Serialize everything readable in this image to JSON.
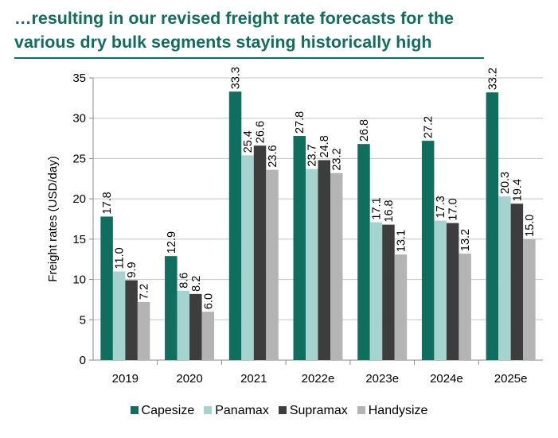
{
  "page": {
    "title_line1": "…resulting in our revised freight rate forecasts for the",
    "title_line2": "various dry bulk segments staying historically high"
  },
  "chart_data": {
    "type": "bar",
    "title": "…resulting in our revised freight rate forecasts for the various dry bulk segments staying historically high",
    "xlabel": "",
    "ylabel": "Freight rates (USD/day)",
    "ylim": [
      0,
      35
    ],
    "yticks": [
      0,
      5,
      10,
      15,
      20,
      25,
      30,
      35
    ],
    "grid": true,
    "legend_position": "bottom",
    "categories": [
      "2019",
      "2020",
      "2021",
      "2022e",
      "2023e",
      "2024e",
      "2025e"
    ],
    "series": [
      {
        "name": "Capesize",
        "color": "#0f6e5d",
        "values": [
          17.8,
          12.9,
          33.3,
          27.8,
          26.8,
          27.2,
          33.2
        ]
      },
      {
        "name": "Panamax",
        "color": "#a5d4d0",
        "values": [
          11.0,
          8.6,
          25.4,
          23.7,
          17.1,
          17.3,
          20.3
        ]
      },
      {
        "name": "Supramax",
        "color": "#3d3d3d",
        "values": [
          9.9,
          8.2,
          26.6,
          24.8,
          16.8,
          17.0,
          19.4
        ]
      },
      {
        "name": "Handysize",
        "color": "#b4b4b4",
        "values": [
          7.2,
          6.0,
          23.6,
          23.2,
          13.1,
          13.2,
          15.0
        ]
      }
    ]
  }
}
